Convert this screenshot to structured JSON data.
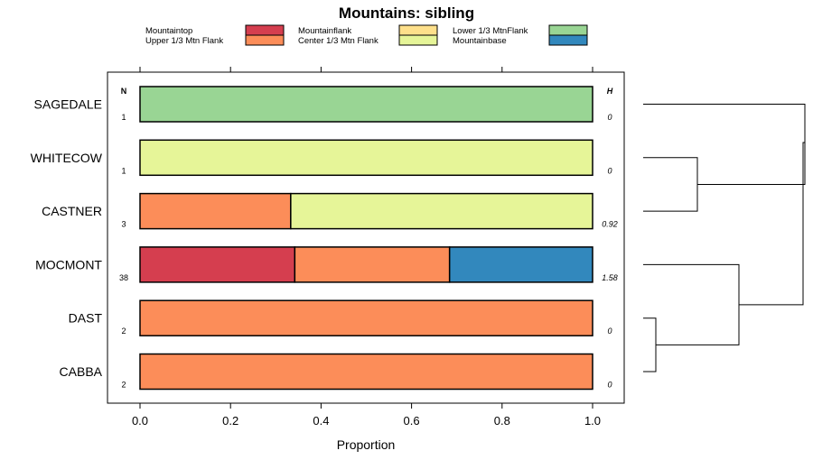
{
  "chart_data": {
    "type": "bar",
    "orientation": "horizontal-stacked",
    "title": "Mountains: sibling",
    "xlabel": "Proportion",
    "xlim": [
      0,
      1
    ],
    "xticks": [
      "0.0",
      "0.2",
      "0.4",
      "0.6",
      "0.8",
      "1.0"
    ],
    "n_header": "N",
    "h_header": "H",
    "legend": [
      {
        "name": "Mountaintop",
        "color": "#d53e4f"
      },
      {
        "name": "Upper 1/3 Mtn Flank",
        "color": "#fc8d59"
      },
      {
        "name": "Mountainflank",
        "color": "#fee08b"
      },
      {
        "name": "Center 1/3 Mtn Flank",
        "color": "#e6f598"
      },
      {
        "name": "Lower 1/3 MtnFlank",
        "color": "#99d594"
      },
      {
        "name": "Mountainbase",
        "color": "#3288bd"
      }
    ],
    "categories": [
      "SAGEDALE",
      "WHITECOW",
      "CASTNER",
      "MOCMONT",
      "DAST",
      "CABBA"
    ],
    "n_values": [
      "1",
      "1",
      "3",
      "38",
      "2",
      "2"
    ],
    "h_values": [
      "0",
      "0",
      "0.92",
      "1.58",
      "0",
      "0"
    ],
    "series": [
      {
        "name": "Mountaintop",
        "values": [
          0,
          0,
          0,
          0.342,
          0,
          0
        ]
      },
      {
        "name": "Upper 1/3 Mtn Flank",
        "values": [
          0,
          0,
          0.333,
          0.342,
          1,
          1
        ]
      },
      {
        "name": "Mountainflank",
        "values": [
          0,
          0,
          0,
          0,
          0,
          0
        ]
      },
      {
        "name": "Center 1/3 Mtn Flank",
        "values": [
          0,
          1,
          0.667,
          0,
          0,
          0
        ]
      },
      {
        "name": "Lower 1/3 MtnFlank",
        "values": [
          1,
          0,
          0,
          0,
          0,
          0
        ]
      },
      {
        "name": "Mountainbase",
        "values": [
          0,
          0,
          0,
          0.316,
          0,
          0
        ]
      }
    ],
    "dendrogram": "clustering of sites shown on right"
  }
}
